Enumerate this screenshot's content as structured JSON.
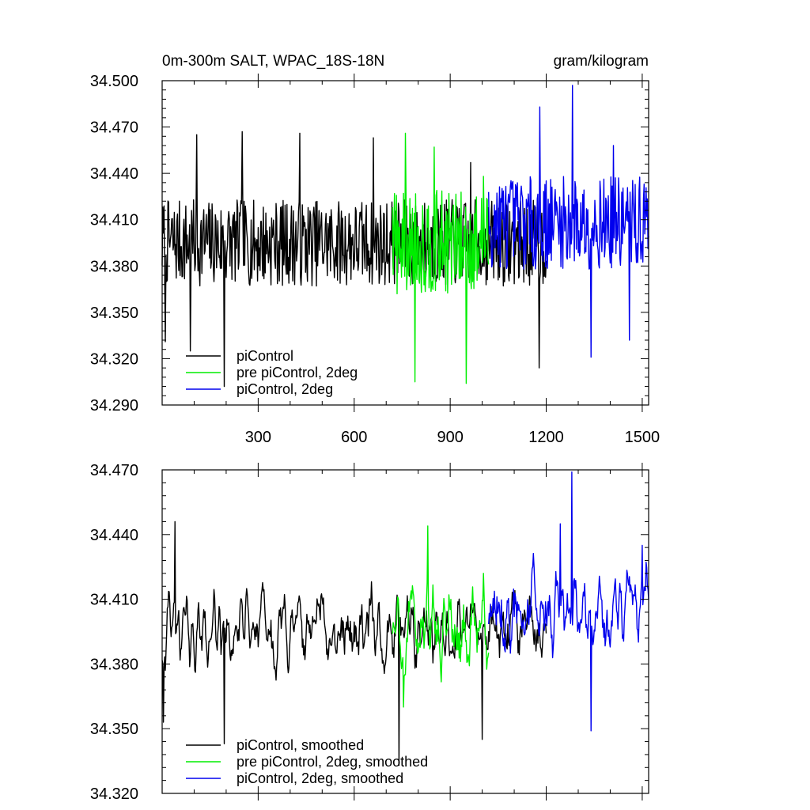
{
  "chart_data": [
    {
      "type": "line",
      "title": "0m-300m SALT, WPAC_18S-18N",
      "units": "gram/kilogram",
      "xlim": [
        0,
        1520
      ],
      "ylim": [
        34.29,
        34.5
      ],
      "x_ticks": [
        300,
        600,
        900,
        1200,
        1500
      ],
      "x_tick_labels": [
        "300",
        "600",
        "900",
        "1200",
        "1500"
      ],
      "y_ticks": [
        34.29,
        34.32,
        34.35,
        34.38,
        34.41,
        34.44,
        34.47,
        34.5
      ],
      "y_tick_labels": [
        "34.290",
        "34.320",
        "34.350",
        "34.380",
        "34.410",
        "34.440",
        "34.470",
        "34.500"
      ],
      "legend": [
        "piControl",
        "pre piControl, 2deg",
        "piControl, 2deg"
      ],
      "series": [
        {
          "name": "piControl",
          "color": "#000000",
          "x_start": 0,
          "x_end": 1200,
          "mean": 34.395,
          "amplitude": 0.028,
          "extremes": [
            [
              10,
              34.331
            ],
            [
              88,
              34.325
            ],
            [
              108,
              34.465
            ],
            [
              195,
              34.302
            ],
            [
              250,
              34.467
            ],
            [
              430,
              34.466
            ],
            [
              660,
              34.463
            ],
            [
              965,
              34.447
            ],
            [
              1178,
              34.314
            ]
          ]
        },
        {
          "name": "pre piControl, 2deg",
          "color": "#00ee00",
          "x_start": 720,
          "x_end": 1020,
          "mean": 34.395,
          "amplitude": 0.034,
          "extremes": [
            [
              760,
              34.466
            ],
            [
              790,
              34.305
            ],
            [
              850,
              34.457
            ],
            [
              950,
              34.304
            ],
            [
              1005,
              34.438
            ]
          ]
        },
        {
          "name": "piControl, 2deg",
          "color": "#0000ee",
          "x_start": 1020,
          "x_end": 1520,
          "mean": 34.408,
          "amplitude": 0.03,
          "extremes": [
            [
              1180,
              34.483
            ],
            [
              1282,
              34.497
            ],
            [
              1340,
              34.321
            ],
            [
              1410,
              34.458
            ],
            [
              1460,
              34.332
            ]
          ]
        }
      ]
    },
    {
      "type": "line",
      "title": "",
      "xlim": [
        0,
        1520
      ],
      "ylim": [
        34.32,
        34.47
      ],
      "x_ticks": [
        300,
        600,
        900,
        1200,
        1500
      ],
      "y_ticks": [
        34.32,
        34.35,
        34.38,
        34.41,
        34.44,
        34.47
      ],
      "y_tick_labels": [
        "34.320",
        "34.350",
        "34.380",
        "34.410",
        "34.440",
        "34.470"
      ],
      "legend": [
        "piControl, smoothed",
        "pre piControl, 2deg, smoothed",
        "piControl, 2deg, smoothed"
      ],
      "series": [
        {
          "name": "piControl, smoothed",
          "color": "#000000",
          "x_start": 0,
          "x_end": 1200,
          "mean": 34.395,
          "amplitude": 0.018,
          "extremes": [
            [
              5,
              34.353
            ],
            [
              40,
              34.446
            ],
            [
              195,
              34.343
            ],
            [
              740,
              34.333
            ],
            [
              1000,
              34.345
            ]
          ]
        },
        {
          "name": "pre piControl, 2deg, smoothed",
          "color": "#00ee00",
          "x_start": 720,
          "x_end": 1020,
          "mean": 34.395,
          "amplitude": 0.022,
          "extremes": [
            [
              830,
              34.444
            ],
            [
              755,
              34.36
            ]
          ]
        },
        {
          "name": "piControl, 2deg, smoothed",
          "color": "#0000ee",
          "x_start": 1020,
          "x_end": 1520,
          "mean": 34.405,
          "amplitude": 0.02,
          "extremes": [
            [
              1280,
              34.469
            ],
            [
              1245,
              34.445
            ],
            [
              1340,
              34.349
            ],
            [
              1500,
              34.435
            ]
          ]
        }
      ]
    }
  ]
}
